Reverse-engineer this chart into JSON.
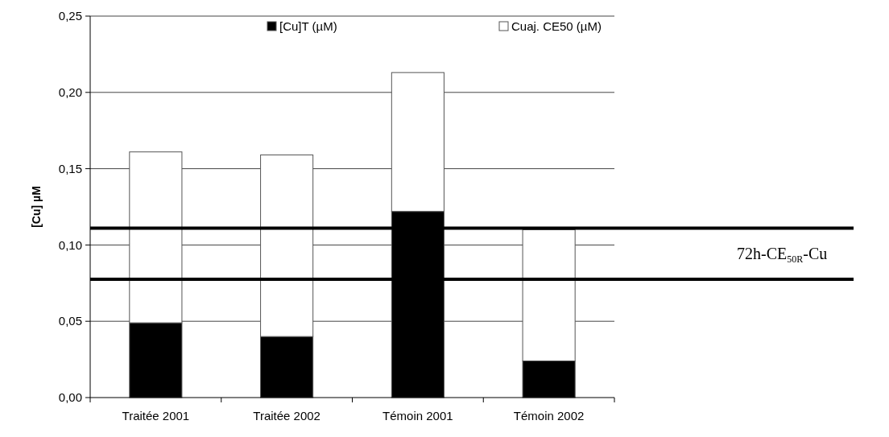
{
  "chart_data": {
    "type": "bar",
    "stacked": true,
    "ylabel": "[Cu] µM",
    "categories": [
      "Traitée 2001",
      "Traitée 2002",
      "Témoin 2001",
      "Témoin 2002"
    ],
    "series": [
      {
        "name": "[Cu]T (µM)",
        "color": "#000000",
        "values": [
          0.049,
          0.04,
          0.122,
          0.024
        ]
      },
      {
        "name": "Cuaj. CE50 (µM)",
        "color": "#ffffff",
        "values": [
          0.112,
          0.119,
          0.091,
          0.086
        ]
      }
    ],
    "ylim": [
      0,
      0.25
    ],
    "yticks": [
      {
        "value": 0,
        "label": "0,00"
      },
      {
        "value": 0.05,
        "label": "0,05"
      },
      {
        "value": 0.1,
        "label": "0,10"
      },
      {
        "value": 0.15,
        "label": "0,15"
      },
      {
        "value": 0.2,
        "label": "0,20"
      },
      {
        "value": 0.25,
        "label": "0,25"
      }
    ],
    "grid": "y",
    "legend": "top",
    "ref_lines": [
      {
        "axis": "y",
        "value": 0.111,
        "color": "#000000"
      },
      {
        "axis": "y",
        "value": 0.0775,
        "color": "#000000"
      }
    ],
    "annotations": [
      "72h-CE$_{50R}$-Cu"
    ]
  }
}
